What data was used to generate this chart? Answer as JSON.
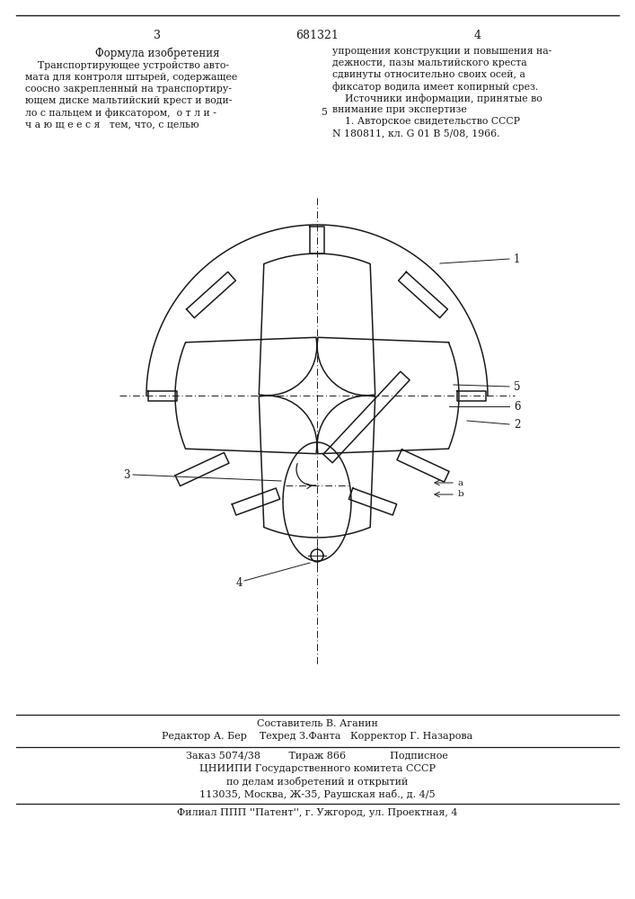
{
  "bg_color": "#ffffff",
  "line_color": "#1a1a1a",
  "page_num_left": "3",
  "page_num_center": "681321",
  "page_num_right": "4",
  "left_header": "Формула изобретения",
  "left_col_lines": [
    "    Транспортирующее устройство авто-",
    "мата для контроля штырей, содержащее",
    "соосно закрепленный на транспортиру-",
    "ющем диске мальтийский крест и води-",
    "ло с пальцем и фиксатором,  о т л и -",
    "ч а ю щ е е с я   тем, что, с целью"
  ],
  "right_col_lines": [
    "упрощения конструкции и повышения на-",
    "дежности, пазы мальтийского креста",
    "сдвинуты относительно своих осей, а",
    "фиксатор водила имеет копирный срез.",
    "    Источники информации, принятые во",
    "внимание при экспертизе",
    "    1. Авторское свидетельство СССР",
    "N 180811, кл. G 01 B 5/08, 1966."
  ],
  "bottom_line1": "Составитель В. Аганин",
  "bottom_line2": "Редактор А. Бер    Техред З.Фанта   Корректор Г. Назарова",
  "bottom_line3": "Заказ 5074/38         Тираж 866              Подписное",
  "bottom_line4": "ЦНИИПИ Государственного комитета СССР",
  "bottom_line5": "по делам изобретений и открытий",
  "bottom_line6": "113035, Москва, Ж-35, Раушская наб., д. 4/5",
  "bottom_line7": "Филиал ППП ''Патент'', г. Ужгород, ул. Проектная, 4"
}
